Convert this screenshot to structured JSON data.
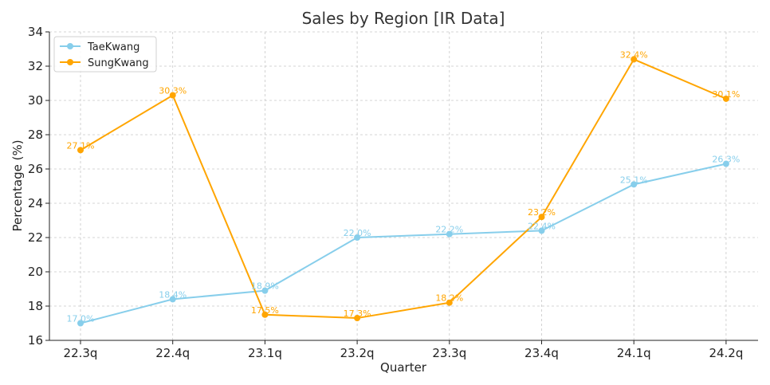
{
  "chart_data": {
    "type": "line",
    "title": "Sales by Region [IR Data]",
    "xlabel": "Quarter",
    "ylabel": "Percentage (%)",
    "categories": [
      "22.3q",
      "22.4q",
      "23.1q",
      "23.2q",
      "23.3q",
      "23.4q",
      "24.1q",
      "24.2q"
    ],
    "ylim": [
      16,
      34
    ],
    "yticks": [
      16,
      18,
      20,
      22,
      24,
      26,
      28,
      30,
      32,
      34
    ],
    "grid": true,
    "legend_position": "top-left",
    "series": [
      {
        "name": "TaeKwang",
        "color": "#87CEEB",
        "values": [
          17.0,
          18.4,
          18.9,
          22.0,
          22.2,
          22.4,
          25.1,
          26.3
        ],
        "labels": [
          "17.0%",
          "18.4%",
          "18.9%",
          "22.0%",
          "22.2%",
          "22.4%",
          "25.1%",
          "26.3%"
        ]
      },
      {
        "name": "SungKwang",
        "color": "#FFA500",
        "values": [
          27.1,
          30.3,
          17.5,
          17.3,
          18.2,
          23.2,
          32.4,
          30.1
        ],
        "labels": [
          "27.1%",
          "30.3%",
          "17.5%",
          "17.3%",
          "18.2%",
          "23.2%",
          "32.4%",
          "30.1%"
        ]
      }
    ]
  }
}
